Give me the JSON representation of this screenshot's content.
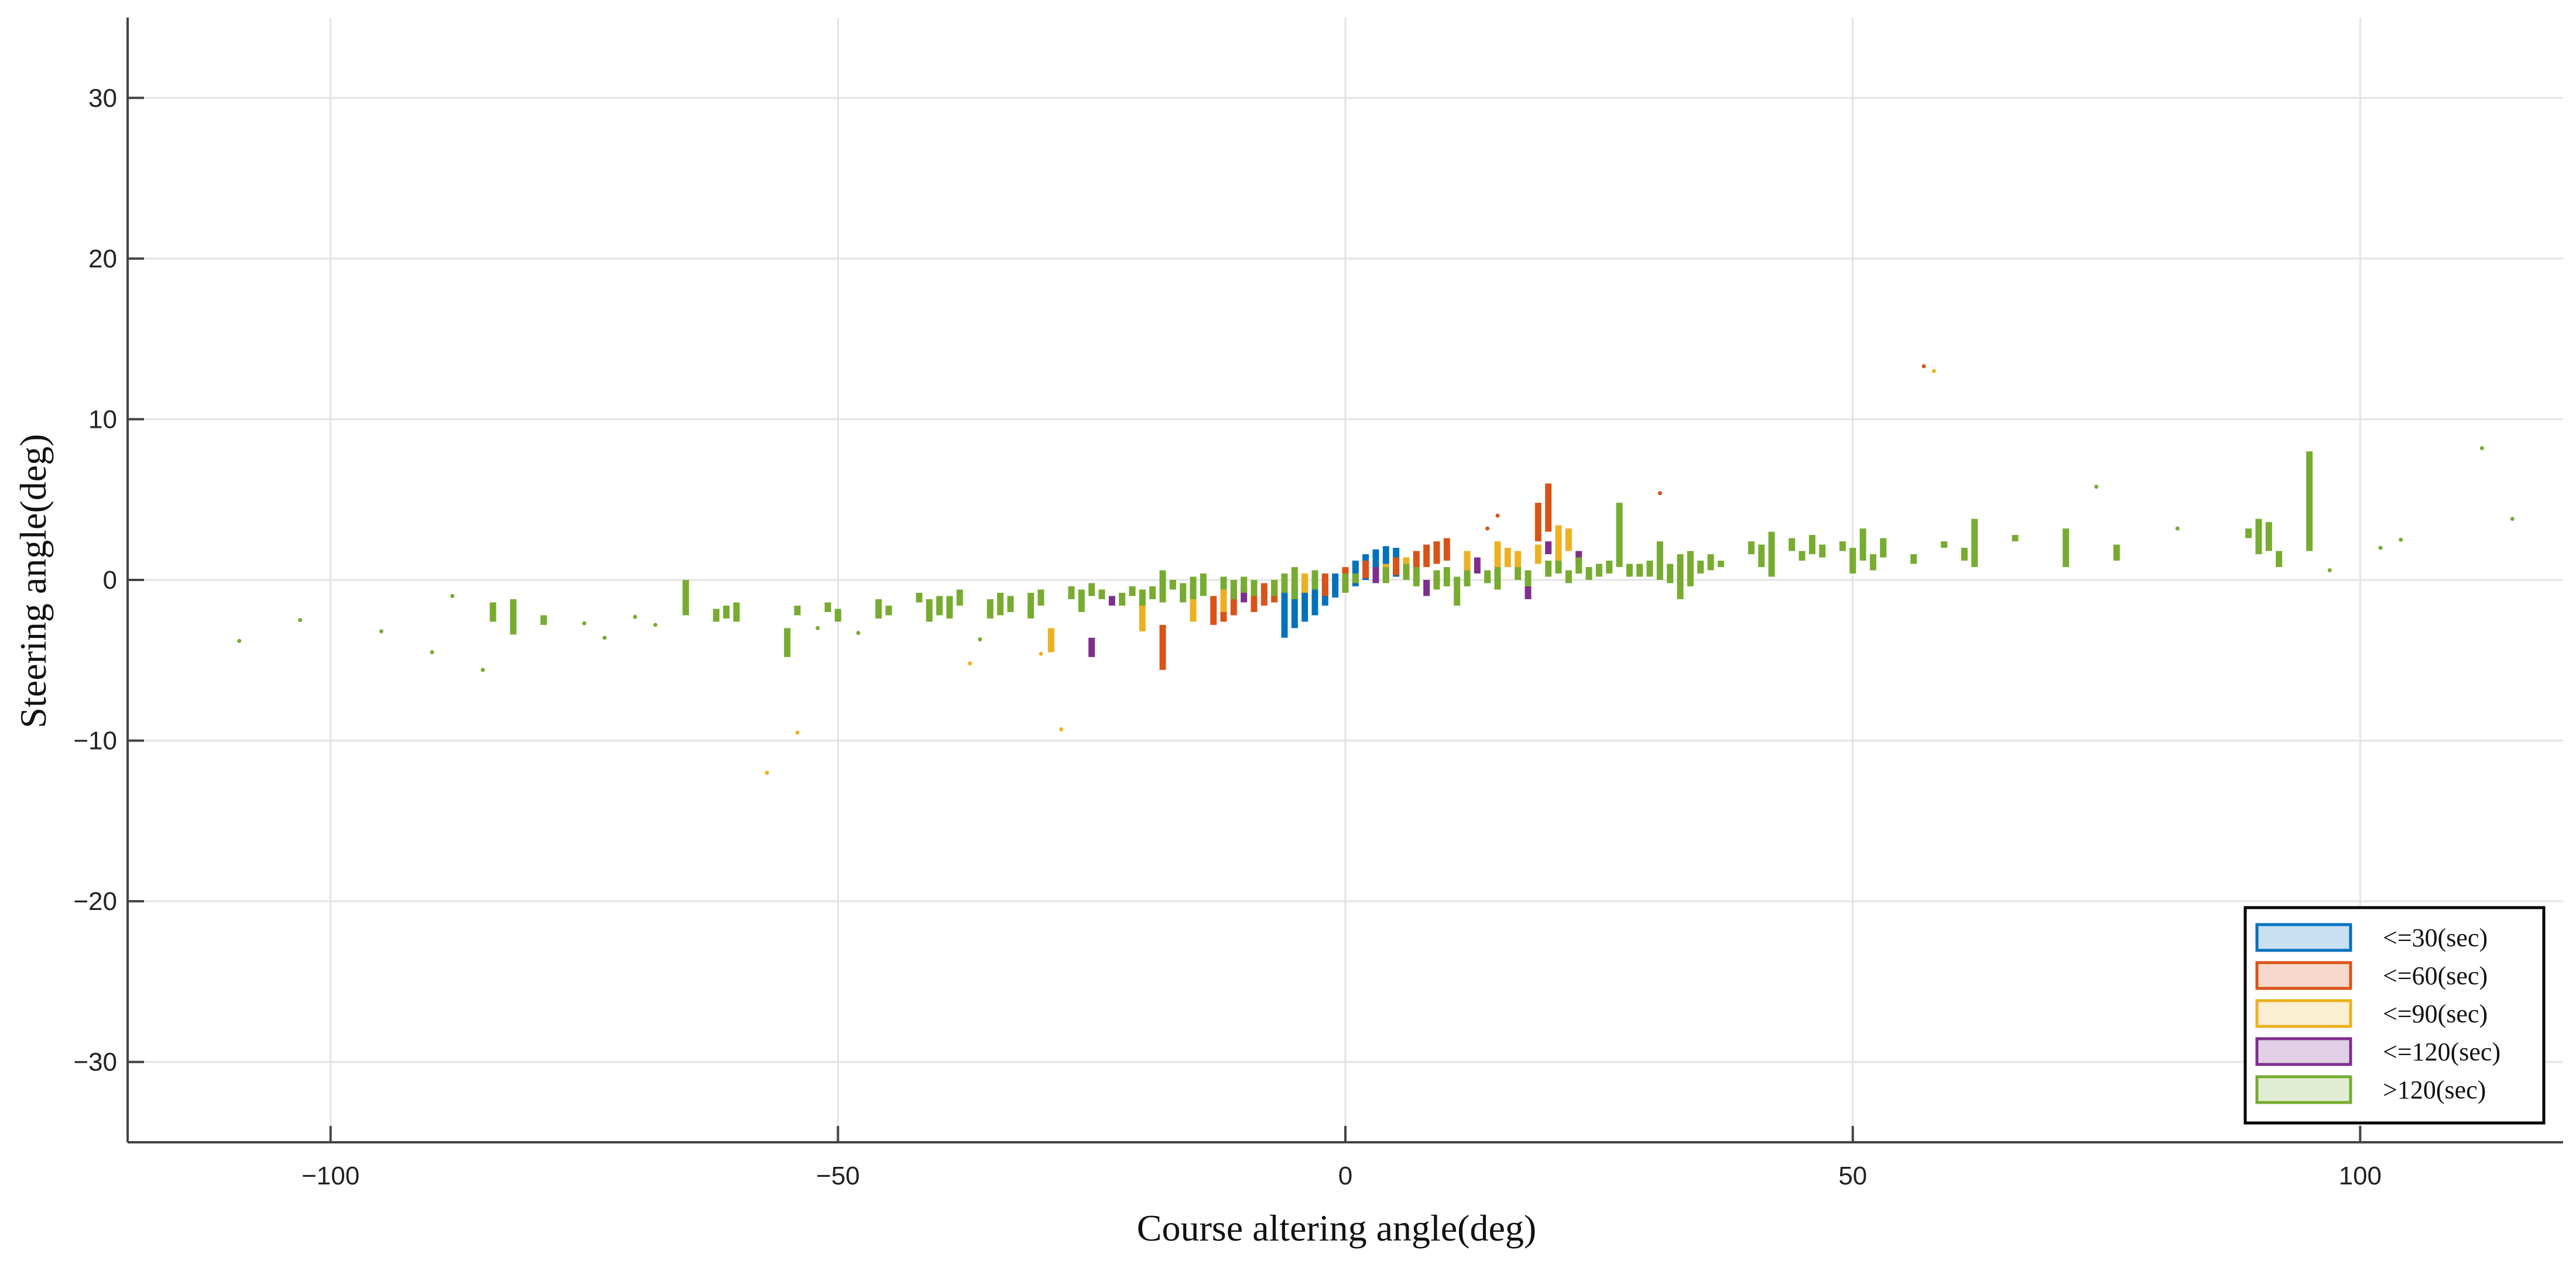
{
  "chart_data": {
    "type": "box",
    "xlabel": "Course altering angle(deg)",
    "ylabel": "Steering angle(deg)",
    "xlim": [
      -120,
      120
    ],
    "ylim": [
      -35,
      35
    ],
    "xticks": [
      -100,
      -50,
      0,
      50,
      100
    ],
    "yticks": [
      -30,
      -20,
      -10,
      0,
      10,
      20,
      30
    ],
    "grid": true,
    "legend_position": "bottom-right",
    "series": [
      {
        "name": "<=30(sec)",
        "color": "#0072BD",
        "fill": "#C9DFF2",
        "boxes": [
          {
            "x": -6,
            "low": -3.6,
            "high": -0.6
          },
          {
            "x": -5,
            "low": -3.0,
            "high": -0.4
          },
          {
            "x": -4,
            "low": -2.6,
            "high": -0.2
          },
          {
            "x": -3,
            "low": -2.2,
            "high": 0.0
          },
          {
            "x": -2,
            "low": -1.6,
            "high": 0.2
          },
          {
            "x": -1,
            "low": -1.1,
            "high": 0.4
          },
          {
            "x": 1,
            "low": -0.4,
            "high": 1.2
          },
          {
            "x": 2,
            "low": 0.0,
            "high": 1.6
          },
          {
            "x": 3,
            "low": 0.1,
            "high": 1.9
          },
          {
            "x": 4,
            "low": 0.3,
            "high": 2.1
          },
          {
            "x": 5,
            "low": 0.2,
            "high": 2.0
          }
        ],
        "outliers": []
      },
      {
        "name": "<=60(sec)",
        "color": "#D95319",
        "fill": "#F6D9CC",
        "boxes": [
          {
            "x": -18,
            "low": -5.6,
            "high": -2.8
          },
          {
            "x": -13,
            "low": -2.8,
            "high": -1.0
          },
          {
            "x": -12,
            "low": -2.6,
            "high": -0.8
          },
          {
            "x": -11,
            "low": -2.2,
            "high": -0.6
          },
          {
            "x": -9,
            "low": -2.0,
            "high": -0.4
          },
          {
            "x": -8,
            "low": -1.6,
            "high": -0.2
          },
          {
            "x": -7,
            "low": -1.4,
            "high": 0.0
          },
          {
            "x": -2,
            "low": -1.0,
            "high": 0.4
          },
          {
            "x": 0,
            "low": -0.2,
            "high": 0.8
          },
          {
            "x": 2,
            "low": 0.1,
            "high": 1.2
          },
          {
            "x": 5,
            "low": 0.3,
            "high": 1.4
          },
          {
            "x": 7,
            "low": 0.6,
            "high": 1.8
          },
          {
            "x": 8,
            "low": 0.8,
            "high": 2.2
          },
          {
            "x": 9,
            "low": 1.0,
            "high": 2.4
          },
          {
            "x": 10,
            "low": 1.2,
            "high": 2.6
          },
          {
            "x": 19,
            "low": 2.4,
            "high": 4.8
          },
          {
            "x": 20,
            "low": 3.0,
            "high": 6.0
          }
        ],
        "outliers": [
          {
            "x": 14,
            "y": 3.2
          },
          {
            "x": 15,
            "y": 4.0
          },
          {
            "x": 31,
            "y": 5.4
          },
          {
            "x": 57,
            "y": 13.3
          }
        ]
      },
      {
        "name": "<=90(sec)",
        "color": "#EDB120",
        "fill": "#FBEFD2",
        "boxes": [
          {
            "x": -29,
            "low": -4.5,
            "high": -3.0
          },
          {
            "x": -20,
            "low": -3.2,
            "high": -1.4
          },
          {
            "x": -15,
            "low": -2.6,
            "high": -0.8
          },
          {
            "x": -12,
            "low": -2.0,
            "high": -0.6
          },
          {
            "x": -4,
            "low": -0.8,
            "high": 0.4
          },
          {
            "x": 4,
            "low": 0.0,
            "high": 1.0
          },
          {
            "x": 6,
            "low": 0.2,
            "high": 1.4
          },
          {
            "x": 12,
            "low": 0.6,
            "high": 1.8
          },
          {
            "x": 15,
            "low": 0.8,
            "high": 2.4
          },
          {
            "x": 16,
            "low": 0.8,
            "high": 2.0
          },
          {
            "x": 17,
            "low": 0.6,
            "high": 1.8
          },
          {
            "x": 19,
            "low": 1.0,
            "high": 2.2
          },
          {
            "x": 21,
            "low": 1.2,
            "high": 3.4
          },
          {
            "x": 22,
            "low": 1.8,
            "high": 3.2
          }
        ],
        "outliers": [
          {
            "x": -57,
            "y": -12.0
          },
          {
            "x": -54,
            "y": -9.5
          },
          {
            "x": -28,
            "y": -9.3
          },
          {
            "x": -37,
            "y": -5.2
          },
          {
            "x": -30,
            "y": -4.6
          },
          {
            "x": 58,
            "y": 13.0
          }
        ]
      },
      {
        "name": "<=120(sec)",
        "color": "#7E2F8E",
        "fill": "#E1CFE5",
        "boxes": [
          {
            "x": -25,
            "low": -4.8,
            "high": -3.6
          },
          {
            "x": -23,
            "low": -1.6,
            "high": -1.0
          },
          {
            "x": -10,
            "low": -1.4,
            "high": -0.4
          },
          {
            "x": 3,
            "low": -0.2,
            "high": 0.8
          },
          {
            "x": 8,
            "low": -1.0,
            "high": 0.0
          },
          {
            "x": 13,
            "low": 0.4,
            "high": 1.4
          },
          {
            "x": 18,
            "low": -1.2,
            "high": 0.4
          },
          {
            "x": 20,
            "low": 1.6,
            "high": 2.4
          },
          {
            "x": 23,
            "low": 1.0,
            "high": 1.8
          }
        ],
        "outliers": []
      },
      {
        "name": ">120(sec)",
        "color": "#77AC30",
        "fill": "#E0EDD2",
        "boxes": [
          {
            "x": -84,
            "low": -2.6,
            "high": -1.4
          },
          {
            "x": -82,
            "low": -3.4,
            "high": -1.2
          },
          {
            "x": -79,
            "low": -2.8,
            "high": -2.2
          },
          {
            "x": -65,
            "low": -2.2,
            "high": 0.0
          },
          {
            "x": -62,
            "low": -2.6,
            "high": -1.8
          },
          {
            "x": -61,
            "low": -2.4,
            "high": -1.6
          },
          {
            "x": -60,
            "low": -2.6,
            "high": -1.4
          },
          {
            "x": -55,
            "low": -4.8,
            "high": -3.0
          },
          {
            "x": -54,
            "low": -2.2,
            "high": -1.6
          },
          {
            "x": -51,
            "low": -2.0,
            "high": -1.4
          },
          {
            "x": -50,
            "low": -2.6,
            "high": -1.8
          },
          {
            "x": -46,
            "low": -2.4,
            "high": -1.2
          },
          {
            "x": -45,
            "low": -2.2,
            "high": -1.6
          },
          {
            "x": -42,
            "low": -1.4,
            "high": -0.8
          },
          {
            "x": -41,
            "low": -2.6,
            "high": -1.2
          },
          {
            "x": -40,
            "low": -2.2,
            "high": -1.0
          },
          {
            "x": -39,
            "low": -2.4,
            "high": -1.0
          },
          {
            "x": -38,
            "low": -1.6,
            "high": -0.6
          },
          {
            "x": -35,
            "low": -2.4,
            "high": -1.2
          },
          {
            "x": -34,
            "low": -2.2,
            "high": -0.8
          },
          {
            "x": -33,
            "low": -2.0,
            "high": -1.0
          },
          {
            "x": -31,
            "low": -2.4,
            "high": -0.8
          },
          {
            "x": -30,
            "low": -1.6,
            "high": -0.6
          },
          {
            "x": -27,
            "low": -1.2,
            "high": -0.4
          },
          {
            "x": -26,
            "low": -2.0,
            "high": -0.6
          },
          {
            "x": -25,
            "low": -1.0,
            "high": -0.2
          },
          {
            "x": -24,
            "low": -1.2,
            "high": -0.6
          },
          {
            "x": -22,
            "low": -1.6,
            "high": -0.8
          },
          {
            "x": -21,
            "low": -1.0,
            "high": -0.4
          },
          {
            "x": -20,
            "low": -1.6,
            "high": -0.6
          },
          {
            "x": -19,
            "low": -1.2,
            "high": -0.4
          },
          {
            "x": -18,
            "low": -1.4,
            "high": 0.6
          },
          {
            "x": -17,
            "low": -0.6,
            "high": 0.0
          },
          {
            "x": -16,
            "low": -1.4,
            "high": -0.2
          },
          {
            "x": -15,
            "low": -1.2,
            "high": 0.2
          },
          {
            "x": -14,
            "low": -1.0,
            "high": 0.4
          },
          {
            "x": -12,
            "low": -0.6,
            "high": 0.2
          },
          {
            "x": -11,
            "low": -1.2,
            "high": 0.0
          },
          {
            "x": -10,
            "low": -0.8,
            "high": 0.2
          },
          {
            "x": -9,
            "low": -1.0,
            "high": 0.0
          },
          {
            "x": -7,
            "low": -1.0,
            "high": 0.0
          },
          {
            "x": -6,
            "low": -0.8,
            "high": 0.4
          },
          {
            "x": -5,
            "low": -1.2,
            "high": 0.8
          },
          {
            "x": -3,
            "low": -0.6,
            "high": 0.6
          },
          {
            "x": 0,
            "low": -0.8,
            "high": 0.4
          },
          {
            "x": 1,
            "low": -0.2,
            "high": 0.4
          },
          {
            "x": 4,
            "low": -0.2,
            "high": 0.8
          },
          {
            "x": 6,
            "low": 0.0,
            "high": 1.0
          },
          {
            "x": 7,
            "low": -0.4,
            "high": 0.8
          },
          {
            "x": 9,
            "low": -0.6,
            "high": 0.6
          },
          {
            "x": 10,
            "low": -0.4,
            "high": 0.8
          },
          {
            "x": 11,
            "low": -1.6,
            "high": 0.2
          },
          {
            "x": 12,
            "low": -0.4,
            "high": 0.6
          },
          {
            "x": 14,
            "low": -0.2,
            "high": 0.6
          },
          {
            "x": 15,
            "low": -0.6,
            "high": 0.8
          },
          {
            "x": 17,
            "low": 0.0,
            "high": 0.8
          },
          {
            "x": 18,
            "low": -0.4,
            "high": 0.6
          },
          {
            "x": 20,
            "low": 0.2,
            "high": 1.2
          },
          {
            "x": 21,
            "low": 0.4,
            "high": 1.2
          },
          {
            "x": 22,
            "low": -0.2,
            "high": 0.6
          },
          {
            "x": 23,
            "low": 0.4,
            "high": 1.4
          },
          {
            "x": 24,
            "low": 0.0,
            "high": 0.8
          },
          {
            "x": 25,
            "low": 0.2,
            "high": 1.0
          },
          {
            "x": 26,
            "low": 0.4,
            "high": 1.2
          },
          {
            "x": 27,
            "low": 0.8,
            "high": 4.8
          },
          {
            "x": 28,
            "low": 0.2,
            "high": 1.0
          },
          {
            "x": 29,
            "low": 0.2,
            "high": 1.0
          },
          {
            "x": 30,
            "low": 0.2,
            "high": 1.2
          },
          {
            "x": 31,
            "low": 0.0,
            "high": 2.4
          },
          {
            "x": 32,
            "low": -0.2,
            "high": 1.0
          },
          {
            "x": 33,
            "low": -1.2,
            "high": 1.6
          },
          {
            "x": 34,
            "low": -0.4,
            "high": 1.8
          },
          {
            "x": 35,
            "low": 0.4,
            "high": 1.2
          },
          {
            "x": 36,
            "low": 0.6,
            "high": 1.6
          },
          {
            "x": 37,
            "low": 0.8,
            "high": 1.2
          },
          {
            "x": 40,
            "low": 1.6,
            "high": 2.4
          },
          {
            "x": 41,
            "low": 0.8,
            "high": 2.2
          },
          {
            "x": 42,
            "low": 0.2,
            "high": 3.0
          },
          {
            "x": 44,
            "low": 1.8,
            "high": 2.6
          },
          {
            "x": 45,
            "low": 1.2,
            "high": 1.8
          },
          {
            "x": 46,
            "low": 1.6,
            "high": 2.8
          },
          {
            "x": 47,
            "low": 1.4,
            "high": 2.2
          },
          {
            "x": 49,
            "low": 1.8,
            "high": 2.4
          },
          {
            "x": 50,
            "low": 0.4,
            "high": 2.0
          },
          {
            "x": 51,
            "low": 1.2,
            "high": 3.2
          },
          {
            "x": 52,
            "low": 0.6,
            "high": 1.6
          },
          {
            "x": 53,
            "low": 1.4,
            "high": 2.6
          },
          {
            "x": 56,
            "low": 1.0,
            "high": 1.6
          },
          {
            "x": 59,
            "low": 2.0,
            "high": 2.4
          },
          {
            "x": 61,
            "low": 1.2,
            "high": 2.0
          },
          {
            "x": 62,
            "low": 0.8,
            "high": 3.8
          },
          {
            "x": 66,
            "low": 2.4,
            "high": 2.8
          },
          {
            "x": 71,
            "low": 0.8,
            "high": 3.2
          },
          {
            "x": 76,
            "low": 1.2,
            "high": 2.2
          },
          {
            "x": 89,
            "low": 2.6,
            "high": 3.2
          },
          {
            "x": 90,
            "low": 1.6,
            "high": 3.8
          },
          {
            "x": 91,
            "low": 1.8,
            "high": 3.6
          },
          {
            "x": 92,
            "low": 0.8,
            "high": 1.8
          },
          {
            "x": 95,
            "low": 1.8,
            "high": 8.0
          }
        ],
        "outliers": [
          {
            "x": -109,
            "y": -3.8
          },
          {
            "x": -103,
            "y": -2.5
          },
          {
            "x": -95,
            "y": -3.2
          },
          {
            "x": -90,
            "y": -4.5
          },
          {
            "x": -85,
            "y": -5.6
          },
          {
            "x": -88,
            "y": -1.0
          },
          {
            "x": -75,
            "y": -2.7
          },
          {
            "x": -73,
            "y": -3.6
          },
          {
            "x": -70,
            "y": -2.3
          },
          {
            "x": -68,
            "y": -2.8
          },
          {
            "x": -52,
            "y": -3.0
          },
          {
            "x": -48,
            "y": -3.3
          },
          {
            "x": -36,
            "y": -3.7
          },
          {
            "x": 74,
            "y": 5.8
          },
          {
            "x": 82,
            "y": 3.2
          },
          {
            "x": 97,
            "y": 0.6
          },
          {
            "x": 102,
            "y": 2.0
          },
          {
            "x": 104,
            "y": 2.5
          },
          {
            "x": 112,
            "y": 8.2
          },
          {
            "x": 115,
            "y": 3.8
          }
        ]
      }
    ]
  }
}
